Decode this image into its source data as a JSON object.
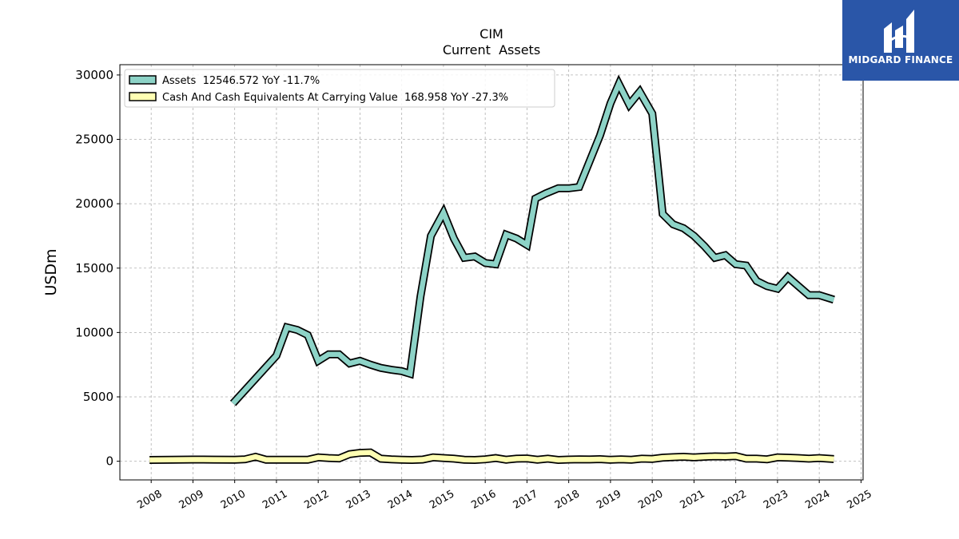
{
  "logo": {
    "text": "MIDGARD FINANCE"
  },
  "chart_data": {
    "type": "line",
    "title": "CIM",
    "subtitle": "Current  Assets",
    "ylabel": "USDm",
    "xlabel": "",
    "xlim": [
      2007.25,
      2025.05
    ],
    "ylim": [
      -1450,
      30800
    ],
    "x_ticks": [
      2008,
      2009,
      2010,
      2011,
      2012,
      2013,
      2014,
      2015,
      2016,
      2017,
      2018,
      2019,
      2020,
      2021,
      2022,
      2023,
      2024,
      2025
    ],
    "x_tick_labels": [
      "2008",
      "2009",
      "2010",
      "2011",
      "2012",
      "2013",
      "2014",
      "2015",
      "2016",
      "2017",
      "2018",
      "2019",
      "2020",
      "2021",
      "2022",
      "2023",
      "2024",
      "2025"
    ],
    "y_ticks": [
      0,
      5000,
      10000,
      15000,
      20000,
      25000,
      30000
    ],
    "y_tick_labels": [
      "0",
      "5000",
      "10000",
      "15000",
      "20000",
      "25000",
      "30000"
    ],
    "grid": true,
    "legend_position": "top-left",
    "series": [
      {
        "name": "Assets  12546.572 YoY -11.7%",
        "color": "#8dd3c7",
        "points": [
          [
            2009.96,
            4500
          ],
          [
            2011.0,
            8200
          ],
          [
            2011.25,
            10400
          ],
          [
            2011.5,
            10200
          ],
          [
            2011.75,
            9800
          ],
          [
            2012.0,
            7800
          ],
          [
            2012.25,
            8300
          ],
          [
            2012.5,
            8300
          ],
          [
            2012.75,
            7600
          ],
          [
            2013.0,
            7800
          ],
          [
            2013.25,
            7500
          ],
          [
            2013.5,
            7250
          ],
          [
            2013.75,
            7100
          ],
          [
            2014.0,
            7000
          ],
          [
            2014.2,
            6800
          ],
          [
            2014.45,
            12800
          ],
          [
            2014.7,
            17500
          ],
          [
            2015.0,
            19300
          ],
          [
            2015.25,
            17300
          ],
          [
            2015.5,
            15800
          ],
          [
            2015.75,
            15900
          ],
          [
            2016.0,
            15400
          ],
          [
            2016.25,
            15300
          ],
          [
            2016.5,
            17600
          ],
          [
            2016.75,
            17300
          ],
          [
            2017.0,
            16800
          ],
          [
            2017.2,
            20400
          ],
          [
            2017.45,
            20800
          ],
          [
            2017.75,
            21200
          ],
          [
            2018.0,
            21200
          ],
          [
            2018.25,
            21300
          ],
          [
            2018.5,
            23300
          ],
          [
            2018.75,
            25300
          ],
          [
            2019.0,
            27800
          ],
          [
            2019.2,
            29300
          ],
          [
            2019.45,
            27700
          ],
          [
            2019.7,
            28700
          ],
          [
            2020.0,
            27000
          ],
          [
            2020.25,
            19200
          ],
          [
            2020.5,
            18400
          ],
          [
            2020.75,
            18100
          ],
          [
            2021.0,
            17500
          ],
          [
            2021.25,
            16700
          ],
          [
            2021.5,
            15800
          ],
          [
            2021.75,
            16000
          ],
          [
            2022.0,
            15300
          ],
          [
            2022.25,
            15200
          ],
          [
            2022.5,
            14000
          ],
          [
            2022.75,
            13600
          ],
          [
            2023.0,
            13400
          ],
          [
            2023.25,
            14300
          ],
          [
            2023.5,
            13600
          ],
          [
            2023.75,
            12900
          ],
          [
            2024.0,
            12900
          ],
          [
            2024.35,
            12546.572
          ]
        ]
      },
      {
        "name": "Cash And Cash Equivalents At Carrying Value  168.958 YoY -27.3%",
        "color": "#ffffb3",
        "points": [
          [
            2007.96,
            100
          ],
          [
            2008.5,
            120
          ],
          [
            2009.0,
            130
          ],
          [
            2009.5,
            125
          ],
          [
            2010.0,
            120
          ],
          [
            2010.25,
            150
          ],
          [
            2010.5,
            350
          ],
          [
            2010.75,
            120
          ],
          [
            2011.0,
            110
          ],
          [
            2011.5,
            120
          ],
          [
            2011.75,
            110
          ],
          [
            2012.0,
            300
          ],
          [
            2012.25,
            250
          ],
          [
            2012.5,
            220
          ],
          [
            2012.75,
            550
          ],
          [
            2013.0,
            650
          ],
          [
            2013.25,
            680
          ],
          [
            2013.5,
            200
          ],
          [
            2013.75,
            150
          ],
          [
            2014.0,
            120
          ],
          [
            2014.25,
            100
          ],
          [
            2014.5,
            130
          ],
          [
            2014.75,
            300
          ],
          [
            2015.0,
            250
          ],
          [
            2015.25,
            200
          ],
          [
            2015.5,
            120
          ],
          [
            2015.75,
            100
          ],
          [
            2016.0,
            150
          ],
          [
            2016.25,
            250
          ],
          [
            2016.5,
            120
          ],
          [
            2016.75,
            200
          ],
          [
            2017.0,
            220
          ],
          [
            2017.25,
            120
          ],
          [
            2017.5,
            200
          ],
          [
            2017.75,
            100
          ],
          [
            2018.0,
            130
          ],
          [
            2018.25,
            150
          ],
          [
            2018.5,
            140
          ],
          [
            2018.75,
            160
          ],
          [
            2019.0,
            110
          ],
          [
            2019.25,
            150
          ],
          [
            2019.5,
            120
          ],
          [
            2019.75,
            200
          ],
          [
            2020.0,
            180
          ],
          [
            2020.25,
            280
          ],
          [
            2020.5,
            320
          ],
          [
            2020.75,
            350
          ],
          [
            2021.0,
            300
          ],
          [
            2021.25,
            350
          ],
          [
            2021.5,
            380
          ],
          [
            2021.75,
            360
          ],
          [
            2022.0,
            400
          ],
          [
            2022.25,
            200
          ],
          [
            2022.5,
            200
          ],
          [
            2022.75,
            150
          ],
          [
            2023.0,
            300
          ],
          [
            2023.25,
            280
          ],
          [
            2023.5,
            250
          ],
          [
            2023.75,
            200
          ],
          [
            2024.0,
            250
          ],
          [
            2024.35,
            168.958
          ]
        ]
      }
    ]
  }
}
